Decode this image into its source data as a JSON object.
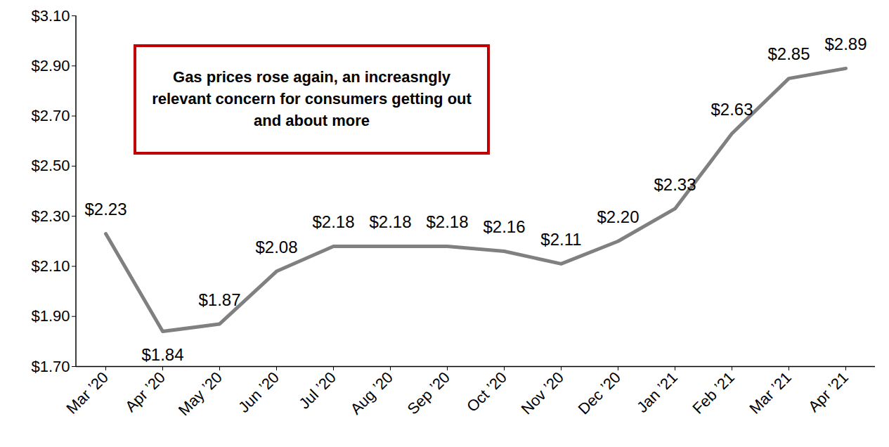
{
  "chart_data": {
    "type": "line",
    "categories": [
      "Mar ’20",
      "Apr ’20",
      "May ’20",
      "Jun ’20",
      "Jul ’20",
      "Aug ’20",
      "Sep ’20",
      "Oct ’20",
      "Nov ’20",
      "Dec ’20",
      "Jan ’21",
      "Feb ’21",
      "Mar ’21",
      "Apr ’21"
    ],
    "values": [
      2.23,
      1.84,
      1.87,
      2.08,
      2.18,
      2.18,
      2.18,
      2.16,
      2.11,
      2.2,
      2.33,
      2.63,
      2.85,
      2.89
    ],
    "value_labels": [
      "$2.23",
      "$1.84",
      "$1.87",
      "$2.08",
      "$2.18",
      "$2.18",
      "$2.18",
      "$2.16",
      "$2.11",
      "$2.20",
      "$2.33",
      "$2.63",
      "$2.85",
      "$2.89"
    ],
    "color": "#808080",
    "ylim": [
      1.7,
      3.1
    ],
    "yticks": [
      {
        "value": 1.7,
        "label": "$1.70"
      },
      {
        "value": 1.9,
        "label": "$1.90"
      },
      {
        "value": 2.1,
        "label": "$2.10"
      },
      {
        "value": 2.3,
        "label": "$2.30"
      },
      {
        "value": 2.5,
        "label": "$2.50"
      },
      {
        "value": 2.7,
        "label": "$2.70"
      },
      {
        "value": 2.9,
        "label": "$2.90"
      },
      {
        "value": 3.1,
        "label": "$3.10"
      }
    ],
    "grid": false,
    "data_labels": true,
    "annotations": [
      "Gas prices rose again, an increasngly relevant concern for consumers getting out and about more"
    ]
  }
}
